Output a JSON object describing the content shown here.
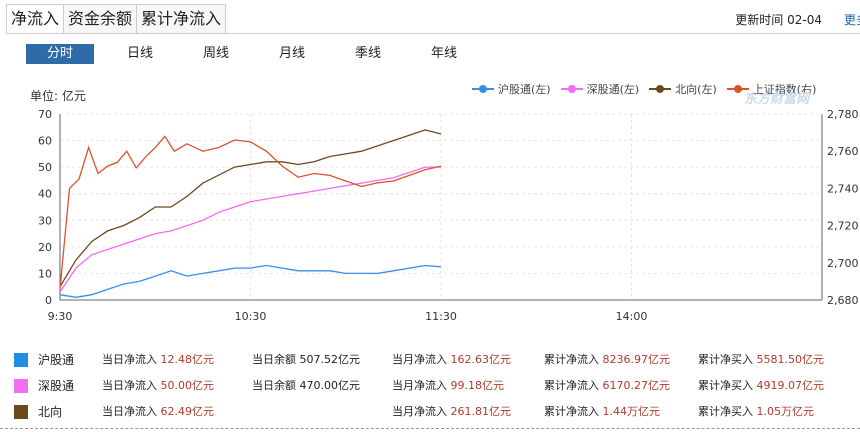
{
  "tabs": [
    {
      "label": "净流入",
      "active": true
    },
    {
      "label": "资金余额",
      "active": false
    },
    {
      "label": "累计净流入",
      "active": false
    }
  ],
  "update": {
    "label": "更新时间",
    "value": "02-04",
    "more": "更多"
  },
  "periods": [
    {
      "label": "分时",
      "active": true
    },
    {
      "label": "日线"
    },
    {
      "label": "周线"
    },
    {
      "label": "月线"
    },
    {
      "label": "季线"
    },
    {
      "label": "年线"
    }
  ],
  "unit_label": "单位: 亿元",
  "legend": [
    {
      "label": "沪股通(左)",
      "color": "#3a8ee6"
    },
    {
      "label": "深股通(左)",
      "color": "#f06ef0"
    },
    {
      "label": "北向(左)",
      "color": "#6b4a1f"
    },
    {
      "label": "上证指数(右)",
      "color": "#d9532c"
    }
  ],
  "watermark": "东方财富网",
  "chart_data": {
    "type": "line",
    "x_ticks": [
      "9:30",
      "10:30",
      "11:30",
      "14:00"
    ],
    "y_left_ticks": [
      "0",
      "10",
      "20",
      "30",
      "40",
      "50",
      "60",
      "70"
    ],
    "y_left_range": [
      0,
      70
    ],
    "y_right_ticks": [
      "2,680",
      "2,700",
      "2,720",
      "2,740",
      "2,760",
      "2,780"
    ],
    "y_right_range": [
      2680,
      2780
    ],
    "series": [
      {
        "name": "沪股通(左)",
        "axis": "left",
        "color": "#3a8ee6",
        "x": [
          0,
          5,
          10,
          15,
          20,
          25,
          30,
          35,
          40,
          45,
          50,
          55,
          60,
          65,
          70,
          75,
          80,
          85,
          90,
          95,
          100,
          105,
          110,
          115,
          120
        ],
        "values": [
          2,
          1,
          2,
          4,
          6,
          7,
          9,
          11,
          9,
          10,
          11,
          12,
          12,
          13,
          12,
          11,
          11,
          11,
          10,
          10,
          10,
          11,
          12,
          13,
          12.48
        ]
      },
      {
        "name": "深股通(左)",
        "axis": "left",
        "color": "#f06ef0",
        "x": [
          0,
          5,
          10,
          15,
          20,
          25,
          30,
          35,
          40,
          45,
          50,
          55,
          60,
          65,
          70,
          75,
          80,
          85,
          90,
          95,
          100,
          105,
          110,
          115,
          120
        ],
        "values": [
          3,
          12,
          17,
          19,
          21,
          23,
          25,
          26,
          28,
          30,
          33,
          35,
          37,
          38,
          39,
          40,
          41,
          42,
          43,
          44,
          45,
          46,
          48,
          50,
          50.0
        ]
      },
      {
        "name": "北向(左)",
        "axis": "left",
        "color": "#6b4a1f",
        "x": [
          0,
          5,
          10,
          15,
          20,
          25,
          30,
          35,
          40,
          45,
          50,
          55,
          60,
          65,
          70,
          75,
          80,
          85,
          90,
          95,
          100,
          105,
          110,
          115,
          120
        ],
        "values": [
          5,
          15,
          22,
          26,
          28,
          31,
          35,
          35,
          39,
          44,
          47,
          50,
          51,
          52,
          52,
          51,
          52,
          54,
          55,
          56,
          58,
          60,
          62,
          64,
          62.49
        ]
      },
      {
        "name": "上证指数(右)",
        "axis": "right",
        "color": "#d9532c",
        "x": [
          0,
          3,
          6,
          9,
          12,
          15,
          18,
          21,
          24,
          27,
          30,
          33,
          36,
          40,
          45,
          50,
          55,
          60,
          65,
          70,
          75,
          80,
          85,
          90,
          95,
          100,
          105,
          110,
          115,
          120
        ],
        "values": [
          2686,
          2740,
          2745,
          2762,
          2748,
          2752,
          2754,
          2760,
          2751,
          2757,
          2762,
          2768,
          2760,
          2764,
          2760,
          2762,
          2766,
          2765,
          2760,
          2752,
          2746,
          2748,
          2747,
          2744,
          2741,
          2743,
          2744,
          2747,
          2750,
          2752
        ]
      }
    ]
  },
  "stats": [
    {
      "name": "沪股通",
      "color": "#1f8ee6",
      "labels": [
        "当日净流入",
        "当日余额",
        "当月净流入",
        "累计净流入",
        "累计净买入"
      ],
      "values": [
        "12.48亿元",
        "507.52亿元",
        "162.63亿元",
        "8236.97亿元",
        "5581.50亿元"
      ]
    },
    {
      "name": "深股通",
      "color": "#f06ef0",
      "labels": [
        "当日净流入",
        "当日余额",
        "当月净流入",
        "累计净流入",
        "累计净买入"
      ],
      "values": [
        "50.00亿元",
        "470.00亿元",
        "99.18亿元",
        "6170.27亿元",
        "4919.07亿元"
      ]
    },
    {
      "name": "北向",
      "color": "#6b4a1f",
      "labels": [
        "当日净流入",
        "",
        "当月净流入",
        "累计净流入",
        "累计净买入"
      ],
      "values": [
        "62.49亿元",
        "",
        "261.81亿元",
        "1.44万亿元",
        "1.05万亿元"
      ]
    }
  ]
}
